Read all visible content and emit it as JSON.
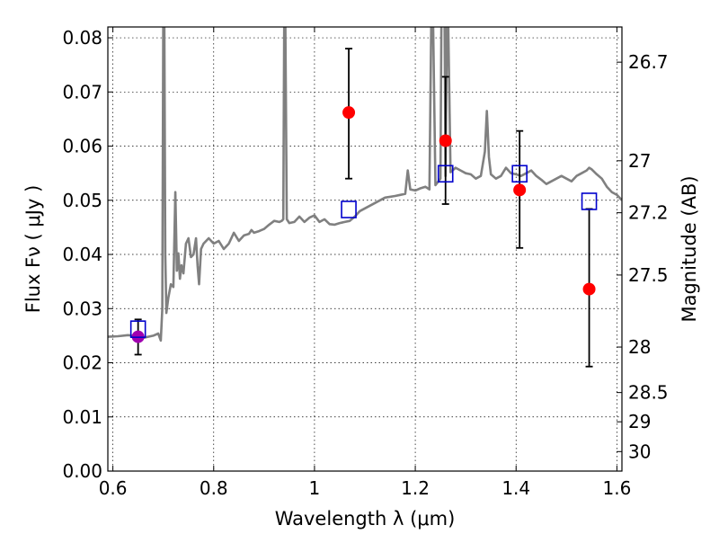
{
  "colors": {
    "model": "#808080",
    "observed": "#ff0000",
    "highlight": "#a000b0",
    "synthetic": "#0000cc",
    "errorbar": "#000000",
    "grid": "#000000"
  },
  "chart_data": {
    "type": "scatter",
    "xlabel": "Wavelength  λ (μm)",
    "ylabel": "Flux  Fν  ( μJy )",
    "y2label": "Magnitude (AB)",
    "xlim": [
      0.59,
      1.61
    ],
    "ylim": [
      0.0,
      0.082
    ],
    "xticks": [
      0.6,
      0.8,
      1.0,
      1.2,
      1.4,
      1.6
    ],
    "xtick_labels": [
      "0.6",
      "0.8",
      "1",
      "1.2",
      "1.4",
      "1.6"
    ],
    "yticks": [
      0.0,
      0.01,
      0.02,
      0.03,
      0.04,
      0.05,
      0.06,
      0.07,
      0.08
    ],
    "ytick_labels": [
      "0.00",
      "0.01",
      "0.02",
      "0.03",
      "0.04",
      "0.05",
      "0.06",
      "0.07",
      "0.08"
    ],
    "y2ticks": [
      {
        "label": "26.7",
        "flux": 0.0755
      },
      {
        "label": "27",
        "flux": 0.0573
      },
      {
        "label": "27.2",
        "flux": 0.0477
      },
      {
        "label": "27.5",
        "flux": 0.0362
      },
      {
        "label": "28",
        "flux": 0.0229
      },
      {
        "label": "28.5",
        "flux": 0.0145
      },
      {
        "label": "29",
        "flux": 0.0091
      },
      {
        "label": "30",
        "flux": 0.0036
      }
    ],
    "grid": true,
    "observed": [
      {
        "x": 0.65,
        "y": 0.0248,
        "err_lo": 0.0033,
        "err_hi": 0.0032,
        "highlight": true
      },
      {
        "x": 1.068,
        "y": 0.0662,
        "err_lo": 0.0122,
        "err_hi": 0.0118,
        "highlight": false
      },
      {
        "x": 1.26,
        "y": 0.061,
        "err_lo": 0.0117,
        "err_hi": 0.0118,
        "highlight": false
      },
      {
        "x": 1.407,
        "y": 0.0519,
        "err_lo": 0.0107,
        "err_hi": 0.0109,
        "highlight": false
      },
      {
        "x": 1.545,
        "y": 0.0336,
        "err_lo": 0.0143,
        "err_hi": 0.0148,
        "highlight": false
      }
    ],
    "synthetic": [
      {
        "x": 0.65,
        "y": 0.0262
      },
      {
        "x": 1.068,
        "y": 0.0483
      },
      {
        "x": 1.26,
        "y": 0.0549
      },
      {
        "x": 1.407,
        "y": 0.0549
      },
      {
        "x": 1.545,
        "y": 0.0498
      }
    ],
    "model_spectrum": {
      "x": [
        0.59,
        0.61,
        0.63,
        0.65,
        0.66,
        0.68,
        0.69,
        0.695,
        0.698,
        0.7,
        0.702,
        0.704,
        0.706,
        0.71,
        0.715,
        0.72,
        0.724,
        0.727,
        0.73,
        0.733,
        0.736,
        0.74,
        0.745,
        0.75,
        0.755,
        0.76,
        0.765,
        0.768,
        0.771,
        0.775,
        0.78,
        0.79,
        0.8,
        0.81,
        0.82,
        0.83,
        0.84,
        0.85,
        0.86,
        0.87,
        0.875,
        0.88,
        0.89,
        0.9,
        0.91,
        0.92,
        0.93,
        0.935,
        0.938,
        0.94,
        0.942,
        0.945,
        0.95,
        0.96,
        0.97,
        0.98,
        0.99,
        1.0,
        1.01,
        1.02,
        1.03,
        1.04,
        1.05,
        1.06,
        1.07,
        1.08,
        1.09,
        1.1,
        1.12,
        1.14,
        1.16,
        1.17,
        1.18,
        1.185,
        1.19,
        1.2,
        1.21,
        1.22,
        1.228,
        1.232,
        1.235,
        1.24,
        1.25,
        1.252,
        1.255,
        1.258,
        1.26,
        1.263,
        1.265,
        1.27,
        1.28,
        1.29,
        1.3,
        1.31,
        1.32,
        1.33,
        1.338,
        1.342,
        1.346,
        1.35,
        1.36,
        1.37,
        1.38,
        1.39,
        1.4,
        1.41,
        1.42,
        1.43,
        1.44,
        1.45,
        1.46,
        1.47,
        1.48,
        1.49,
        1.5,
        1.51,
        1.52,
        1.53,
        1.54,
        1.545,
        1.55,
        1.56,
        1.57,
        1.58,
        1.59,
        1.6,
        1.61
      ],
      "y": [
        0.0248,
        0.0249,
        0.0251,
        0.0249,
        0.0246,
        0.025,
        0.0254,
        0.0241,
        0.03,
        0.085,
        0.085,
        0.04,
        0.0292,
        0.032,
        0.0345,
        0.034,
        0.0515,
        0.037,
        0.0402,
        0.0355,
        0.038,
        0.0365,
        0.042,
        0.043,
        0.0395,
        0.04,
        0.043,
        0.038,
        0.0345,
        0.041,
        0.042,
        0.043,
        0.042,
        0.0425,
        0.041,
        0.042,
        0.044,
        0.0425,
        0.0435,
        0.0438,
        0.0445,
        0.044,
        0.0443,
        0.0447,
        0.0455,
        0.0462,
        0.046,
        0.0462,
        0.0465,
        0.085,
        0.085,
        0.0465,
        0.0458,
        0.046,
        0.047,
        0.046,
        0.0468,
        0.0472,
        0.046,
        0.0465,
        0.0456,
        0.0455,
        0.0458,
        0.046,
        0.0462,
        0.047,
        0.048,
        0.0485,
        0.0495,
        0.0505,
        0.0508,
        0.051,
        0.0512,
        0.0555,
        0.052,
        0.0518,
        0.0522,
        0.0525,
        0.052,
        0.085,
        0.085,
        0.0528,
        0.054,
        0.085,
        0.085,
        0.085,
        0.0545,
        0.085,
        0.085,
        0.0552,
        0.056,
        0.0555,
        0.055,
        0.0548,
        0.054,
        0.0545,
        0.059,
        0.0665,
        0.058,
        0.0548,
        0.054,
        0.0545,
        0.056,
        0.055,
        0.0548,
        0.0545,
        0.055,
        0.0555,
        0.0545,
        0.0538,
        0.053,
        0.0535,
        0.054,
        0.0545,
        0.054,
        0.0535,
        0.0545,
        0.055,
        0.0555,
        0.056,
        0.0557,
        0.0548,
        0.054,
        0.0525,
        0.0515,
        0.051,
        0.05
      ]
    }
  }
}
